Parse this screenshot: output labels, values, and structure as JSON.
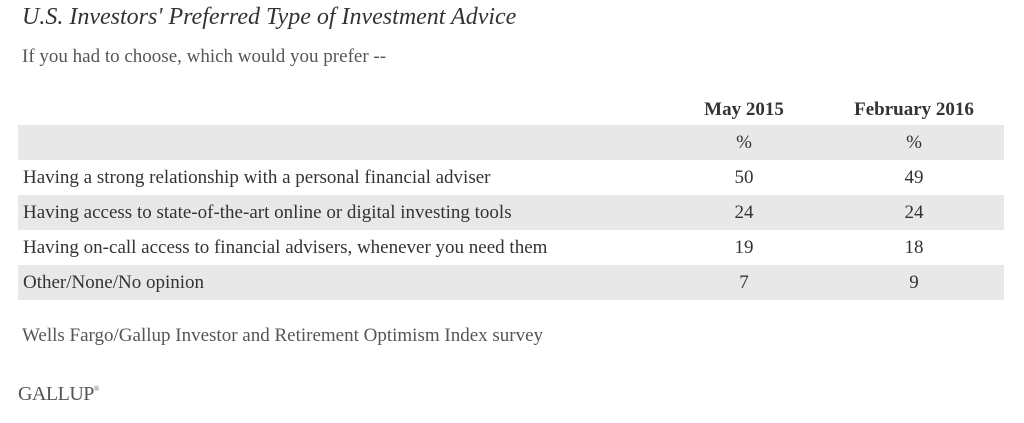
{
  "title": "U.S. Investors' Preferred Type of Investment Advice",
  "subtitle": "If you had to choose, which would you prefer --",
  "source": "Wells Fargo/Gallup Investor and Retirement Optimism Index survey",
  "logo": "GALLUP",
  "chart_data": {
    "type": "table",
    "title": "U.S. Investors' Preferred Type of Investment Advice",
    "subtitle": "If you had to choose, which would you prefer --",
    "columns": [
      "May 2015",
      "February 2016"
    ],
    "unit_row": [
      "%",
      "%"
    ],
    "rows": [
      {
        "label": "Having a strong relationship with a personal financial adviser",
        "values": [
          "50",
          "49"
        ]
      },
      {
        "label": "Having access to state-of-the-art online or digital investing tools",
        "values": [
          "24",
          "24"
        ]
      },
      {
        "label": "Having on-call access to financial advisers, whenever you need them",
        "values": [
          "19",
          "18"
        ]
      },
      {
        "label": "Other/None/No opinion",
        "values": [
          "7",
          "9"
        ]
      }
    ],
    "source": "Wells Fargo/Gallup Investor and Retirement Optimism Index survey"
  }
}
